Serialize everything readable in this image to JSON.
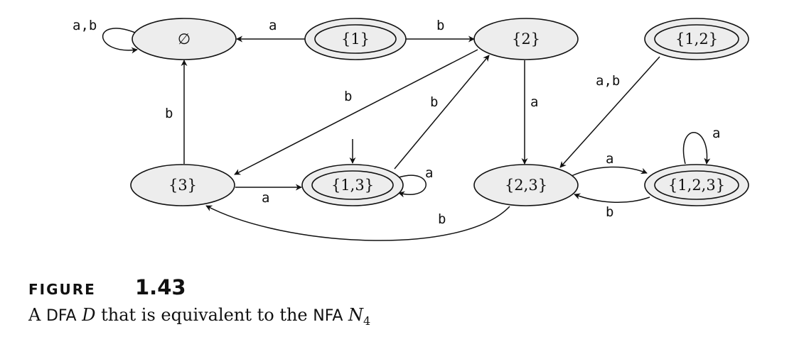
{
  "states": {
    "empty": "∅",
    "s1": "{1}",
    "s2": "{2}",
    "s12": "{1,2}",
    "s3": "{3}",
    "s13": "{1,3}",
    "s23": "{2,3}",
    "s123": "{1,2,3}"
  },
  "edges": {
    "empty_self": "a,b",
    "s1_to_empty": "a",
    "s1_to_s2": "b",
    "s3_to_empty": "b",
    "s2_to_s3": "b",
    "s13_to_s2": "b",
    "s2_to_s23": "a",
    "s12_to_s23": "a,b",
    "s13_self": "a",
    "s3_to_s13": "a",
    "s123_self": "a",
    "s23_to_s123": "a",
    "s123_to_s23": "b",
    "s23_to_s3": "b"
  },
  "caption": {
    "figure_word": "FIGURE",
    "figure_number": "1.43",
    "text_prefix": "A ",
    "dfa_abbr": "DFA",
    "dfa_name": "D",
    "text_middle": " that is equivalent to the ",
    "nfa_abbr": "NFA",
    "nfa_name": "N",
    "nfa_subscript": "4"
  }
}
